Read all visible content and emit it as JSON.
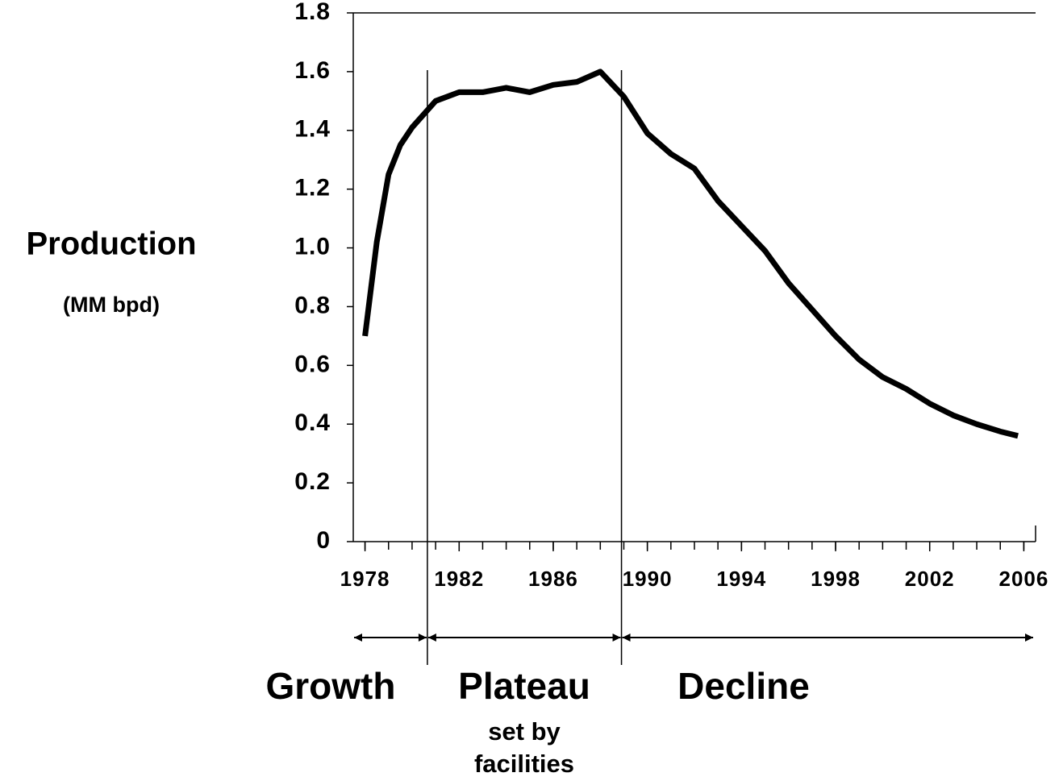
{
  "chart_data": {
    "type": "line",
    "ylabel": "Production",
    "ylabel_unit": "(MM bpd)",
    "x": [
      1978,
      1978.5,
      1979,
      1979.5,
      1980,
      1981,
      1982,
      1983,
      1984,
      1985,
      1986,
      1987,
      1988,
      1989,
      1990,
      1991,
      1992,
      1993,
      1994,
      1995,
      1996,
      1997,
      1998,
      1999,
      2000,
      2001,
      2002,
      2003,
      2004,
      2005,
      2005.75
    ],
    "series": [
      {
        "name": "Production",
        "color": "#000000",
        "values": [
          0.7,
          1.02,
          1.25,
          1.35,
          1.41,
          1.5,
          1.53,
          1.53,
          1.545,
          1.53,
          1.555,
          1.565,
          1.6,
          1.515,
          1.39,
          1.32,
          1.27,
          1.16,
          1.075,
          0.99,
          0.88,
          0.79,
          0.7,
          0.62,
          0.56,
          0.52,
          0.47,
          0.43,
          0.4,
          0.375,
          0.36
        ]
      }
    ],
    "xlim": [
      1977.5,
      2006.5
    ],
    "xticks": [
      1978,
      1982,
      1986,
      1990,
      1994,
      1998,
      2002,
      2006
    ],
    "minor_ticks": true,
    "ylim": [
      0,
      1.8
    ],
    "yticks": [
      0,
      0.2,
      0.4,
      0.6,
      0.8,
      {
        "value": 1.0,
        "label": "1.0"
      },
      1.2,
      1.4,
      1.6,
      1.8
    ],
    "dividers": [
      1980.65,
      1988.9
    ],
    "phases": [
      {
        "name": "Growth"
      },
      {
        "name": "Plateau",
        "note_lines": [
          "set by",
          "facilities"
        ]
      },
      {
        "name": "Decline"
      }
    ]
  }
}
